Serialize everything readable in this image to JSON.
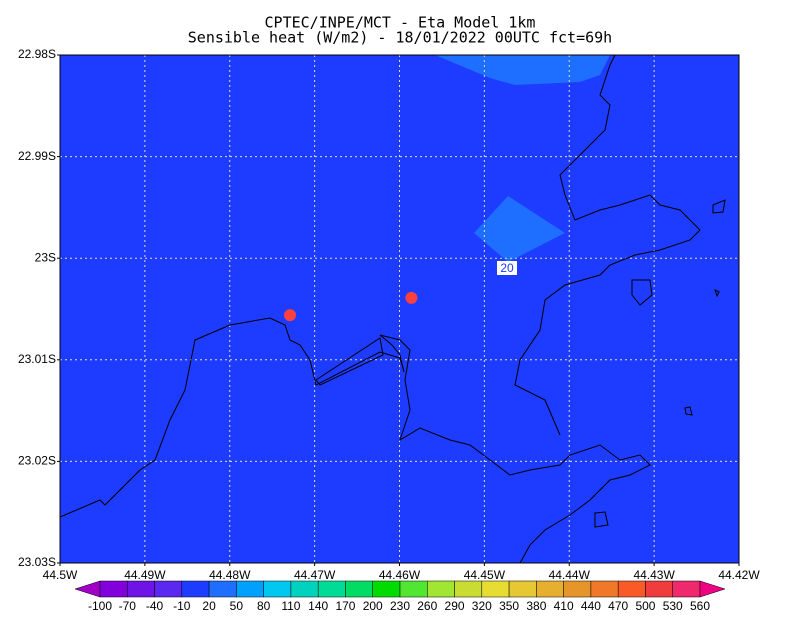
{
  "chart_data": {
    "type": "filled-contour",
    "title": "CPTEC/INPE/MCT -  Eta Model 1km",
    "subtitle": "Sensible heat (W/m2) - 18/01/2022 00UTC fct=69h",
    "xlim": [
      -44.5,
      -44.42
    ],
    "ylim": [
      -23.03,
      -22.98
    ],
    "xticks": [
      {
        "value": -44.5,
        "label": "44.5W"
      },
      {
        "value": -44.49,
        "label": "44.49W"
      },
      {
        "value": -44.48,
        "label": "44.48W"
      },
      {
        "value": -44.47,
        "label": "44.47W"
      },
      {
        "value": -44.46,
        "label": "44.46W"
      },
      {
        "value": -44.45,
        "label": "44.45W"
      },
      {
        "value": -44.44,
        "label": "44.44W"
      },
      {
        "value": -44.43,
        "label": "44.43W"
      },
      {
        "value": -44.42,
        "label": "44.42W"
      }
    ],
    "yticks": [
      {
        "value": -22.98,
        "label": "22.98S"
      },
      {
        "value": -22.99,
        "label": "22.99S"
      },
      {
        "value": -23.0,
        "label": "23S"
      },
      {
        "value": -23.01,
        "label": "23.01S"
      },
      {
        "value": -23.02,
        "label": "23.02S"
      },
      {
        "value": -23.03,
        "label": "23.03S"
      }
    ],
    "grid": true,
    "levels": [
      -100,
      -70,
      -40,
      -10,
      20,
      50,
      80,
      110,
      140,
      170,
      200,
      230,
      260,
      290,
      320,
      350,
      380,
      410,
      440,
      470,
      500,
      530,
      560
    ],
    "colors": [
      "#a000c8",
      "#8200dc",
      "#6e14e6",
      "#5a28f0",
      "#1e3cff",
      "#1e6eff",
      "#00a0ff",
      "#00c8f0",
      "#00d2be",
      "#00dc96",
      "#00dc64",
      "#00dc00",
      "#50e632",
      "#a0e632",
      "#c8dc32",
      "#e6dc32",
      "#e6c832",
      "#e6af2d",
      "#e69628",
      "#f07828",
      "#fa5a28",
      "#f03c3c",
      "#f0286e",
      "#f00082"
    ],
    "contour_labels": [
      20
    ],
    "points": {
      "x": [
        -44.4729,
        -44.4586
      ],
      "y": [
        -23.0056,
        -23.0039
      ],
      "color": "#ff4040"
    }
  }
}
